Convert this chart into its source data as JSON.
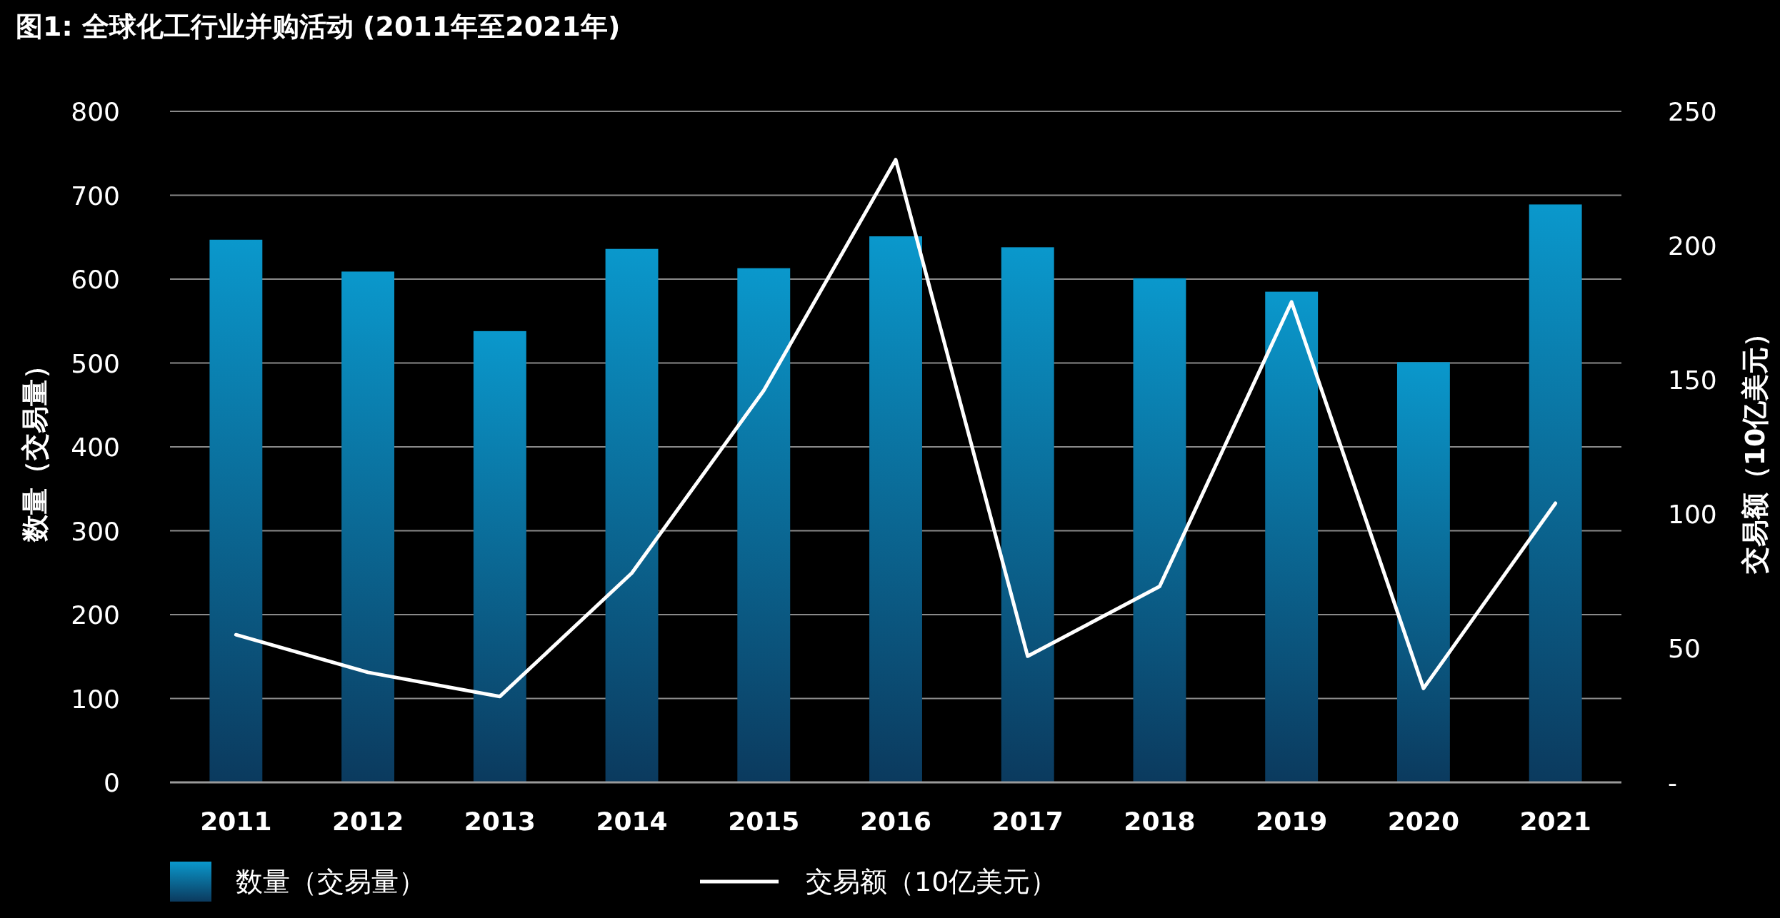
{
  "chart_data": {
    "type": "bar",
    "title": "图1: 全球化工行业并购活动 (2011年至2021年)",
    "categories": [
      "2011",
      "2012",
      "2013",
      "2014",
      "2015",
      "2016",
      "2017",
      "2018",
      "2019",
      "2020",
      "2021"
    ],
    "ylabel": "数量（交易量）",
    "y2label": "交易额（10亿美元）",
    "ylim": [
      0,
      800
    ],
    "yticks": [
      0,
      100,
      200,
      300,
      400,
      500,
      600,
      700,
      800
    ],
    "y2lim": [
      0,
      250
    ],
    "y2ticks": [
      {
        "value": 0,
        "label": "-"
      },
      50,
      100,
      150,
      200,
      250
    ],
    "grid": "y",
    "legend": "bottom",
    "series": [
      {
        "name": "数量（交易量）",
        "color": "#0a98cc",
        "values": [
          647,
          609,
          538,
          636,
          613,
          651,
          638,
          601,
          585,
          501,
          689
        ]
      },
      {
        "name": "交易额（10亿美元）",
        "type": "line",
        "axis": "y2",
        "color": "#ffffff",
        "values": [
          55,
          41,
          32,
          78,
          146,
          232,
          47,
          73,
          179,
          35,
          104
        ]
      }
    ]
  }
}
